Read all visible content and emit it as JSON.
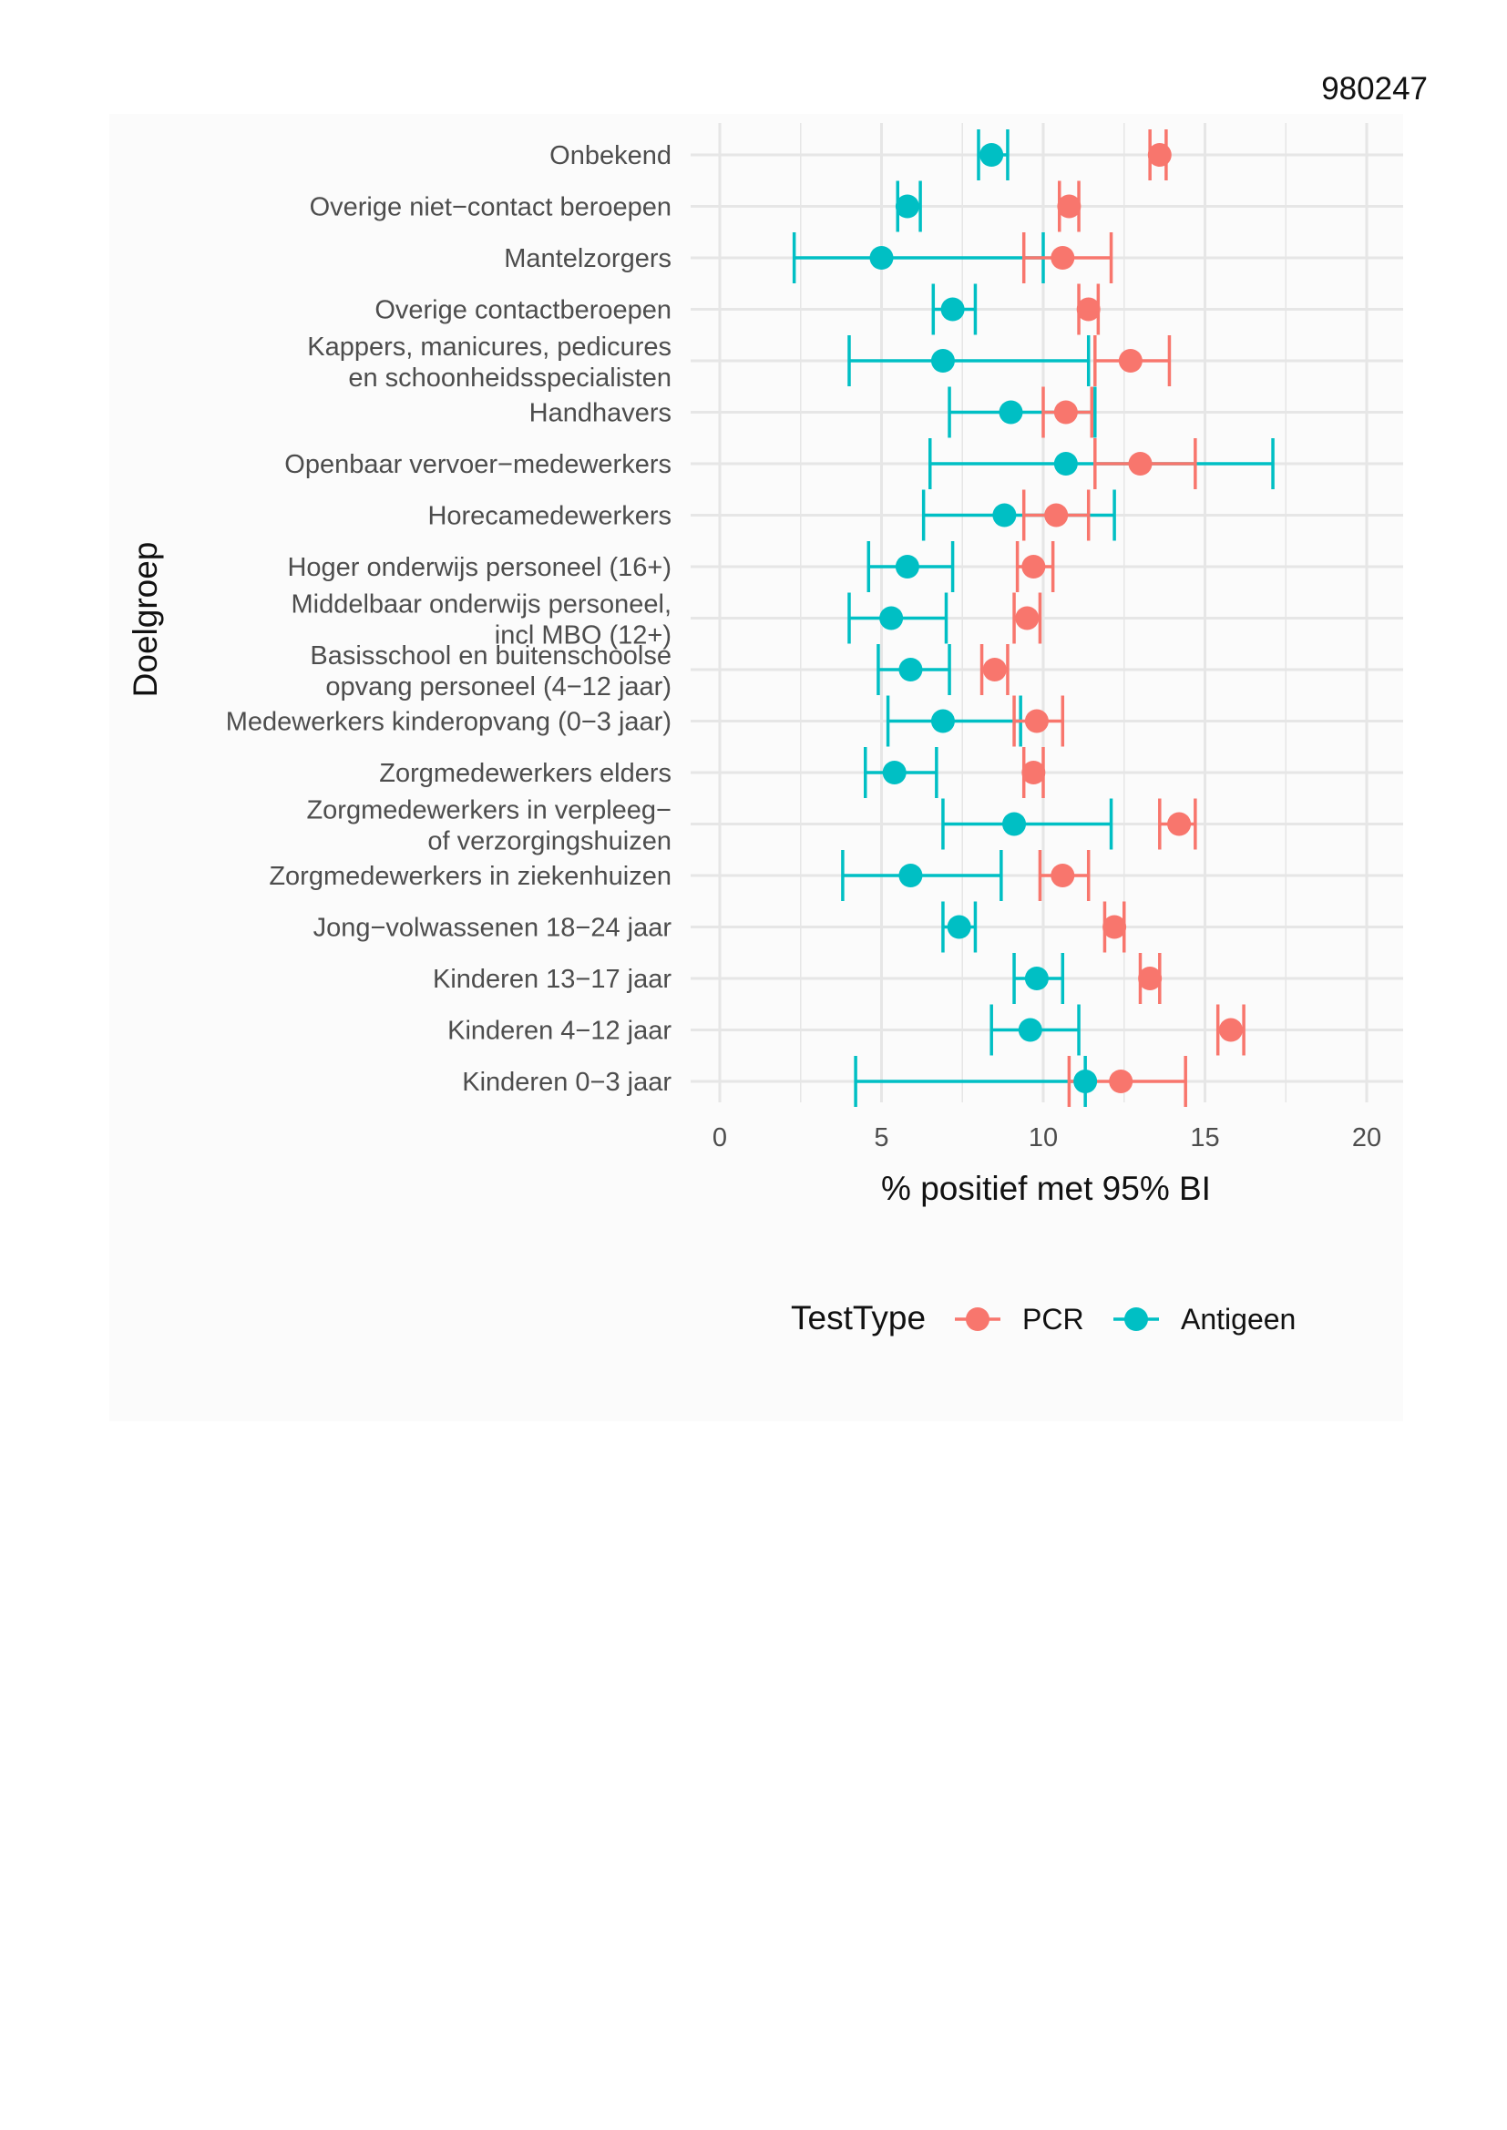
{
  "page": {
    "id": "980247"
  },
  "chart_data": {
    "type": "errorbar",
    "title": "",
    "xlabel": "% positief met 95% BI",
    "ylabel": "Doelgroep",
    "xlim": [
      0,
      21
    ],
    "x_ticks": [
      "0",
      "5",
      "10",
      "15",
      "20"
    ],
    "x_tick_values": [
      0,
      5,
      10,
      15,
      20
    ],
    "grid": true,
    "legend": {
      "title": "TestType",
      "position": "bottom",
      "entries": [
        "PCR",
        "Antigeen"
      ]
    },
    "series": [
      {
        "name": "PCR",
        "color": "#F8766D"
      },
      {
        "name": "Antigeen",
        "color": "#00BFC4"
      }
    ],
    "categories": [
      {
        "label": [
          "Onbekend"
        ],
        "pcr": {
          "value": 13.6,
          "low": 13.3,
          "high": 13.8
        },
        "antigen": {
          "value": 8.4,
          "low": 8.0,
          "high": 8.9
        }
      },
      {
        "label": [
          "Overige niet−contact beroepen"
        ],
        "pcr": {
          "value": 10.8,
          "low": 10.5,
          "high": 11.1
        },
        "antigen": {
          "value": 5.8,
          "low": 5.5,
          "high": 6.2
        }
      },
      {
        "label": [
          "Mantelzorgers"
        ],
        "pcr": {
          "value": 10.6,
          "low": 9.4,
          "high": 12.1
        },
        "antigen": {
          "value": 5.0,
          "low": 2.3,
          "high": 10.0
        }
      },
      {
        "label": [
          "Overige contactberoepen"
        ],
        "pcr": {
          "value": 11.4,
          "low": 11.1,
          "high": 11.7
        },
        "antigen": {
          "value": 7.2,
          "low": 6.6,
          "high": 7.9
        }
      },
      {
        "label": [
          "Kappers, manicures, pedicures",
          "en schoonheidsspecialisten"
        ],
        "pcr": {
          "value": 12.7,
          "low": 11.6,
          "high": 13.9
        },
        "antigen": {
          "value": 6.9,
          "low": 4.0,
          "high": 11.4
        }
      },
      {
        "label": [
          "Handhavers"
        ],
        "pcr": {
          "value": 10.7,
          "low": 10.0,
          "high": 11.5
        },
        "antigen": {
          "value": 9.0,
          "low": 7.1,
          "high": 11.6
        }
      },
      {
        "label": [
          "Openbaar vervoer−medewerkers"
        ],
        "pcr": {
          "value": 13.0,
          "low": 11.6,
          "high": 14.7
        },
        "antigen": {
          "value": 10.7,
          "low": 6.5,
          "high": 17.1
        }
      },
      {
        "label": [
          "Horecamedewerkers"
        ],
        "pcr": {
          "value": 10.4,
          "low": 9.4,
          "high": 11.4
        },
        "antigen": {
          "value": 8.8,
          "low": 6.3,
          "high": 12.2
        }
      },
      {
        "label": [
          "Hoger onderwijs personeel (16+)"
        ],
        "pcr": {
          "value": 9.7,
          "low": 9.2,
          "high": 10.3
        },
        "antigen": {
          "value": 5.8,
          "low": 4.6,
          "high": 7.2
        }
      },
      {
        "label": [
          "Middelbaar onderwijs personeel,",
          "incl MBO (12+)"
        ],
        "pcr": {
          "value": 9.5,
          "low": 9.1,
          "high": 9.9
        },
        "antigen": {
          "value": 5.3,
          "low": 4.0,
          "high": 7.0
        }
      },
      {
        "label": [
          "Basisschool en buitenschoolse",
          "opvang personeel (4−12 jaar)"
        ],
        "pcr": {
          "value": 8.5,
          "low": 8.1,
          "high": 8.9
        },
        "antigen": {
          "value": 5.9,
          "low": 4.9,
          "high": 7.1
        }
      },
      {
        "label": [
          "Medewerkers kinderopvang (0−3 jaar)"
        ],
        "pcr": {
          "value": 9.8,
          "low": 9.1,
          "high": 10.6
        },
        "antigen": {
          "value": 6.9,
          "low": 5.2,
          "high": 9.3
        }
      },
      {
        "label": [
          "Zorgmedewerkers elders"
        ],
        "pcr": {
          "value": 9.7,
          "low": 9.4,
          "high": 10.0
        },
        "antigen": {
          "value": 5.4,
          "low": 4.5,
          "high": 6.7
        }
      },
      {
        "label": [
          "Zorgmedewerkers in verpleeg−",
          "of verzorgingshuizen"
        ],
        "pcr": {
          "value": 14.2,
          "low": 13.6,
          "high": 14.7
        },
        "antigen": {
          "value": 9.1,
          "low": 6.9,
          "high": 12.1
        }
      },
      {
        "label": [
          "Zorgmedewerkers in ziekenhuizen"
        ],
        "pcr": {
          "value": 10.6,
          "low": 9.9,
          "high": 11.4
        },
        "antigen": {
          "value": 5.9,
          "low": 3.8,
          "high": 8.7
        }
      },
      {
        "label": [
          "Jong−volwassenen 18−24 jaar"
        ],
        "pcr": {
          "value": 12.2,
          "low": 11.9,
          "high": 12.5
        },
        "antigen": {
          "value": 7.4,
          "low": 6.9,
          "high": 7.9
        }
      },
      {
        "label": [
          "Kinderen 13−17 jaar"
        ],
        "pcr": {
          "value": 13.3,
          "low": 13.0,
          "high": 13.6
        },
        "antigen": {
          "value": 9.8,
          "low": 9.1,
          "high": 10.6
        }
      },
      {
        "label": [
          "Kinderen 4−12 jaar"
        ],
        "pcr": {
          "value": 15.8,
          "low": 15.4,
          "high": 16.2
        },
        "antigen": {
          "value": 9.6,
          "low": 8.4,
          "high": 11.1
        }
      },
      {
        "label": [
          "Kinderen 0−3 jaar"
        ],
        "pcr": {
          "value": 12.4,
          "low": 10.8,
          "high": 14.4
        },
        "antigen": {
          "value": 11.3,
          "low": 4.2,
          "high": 11.3
        }
      }
    ]
  }
}
